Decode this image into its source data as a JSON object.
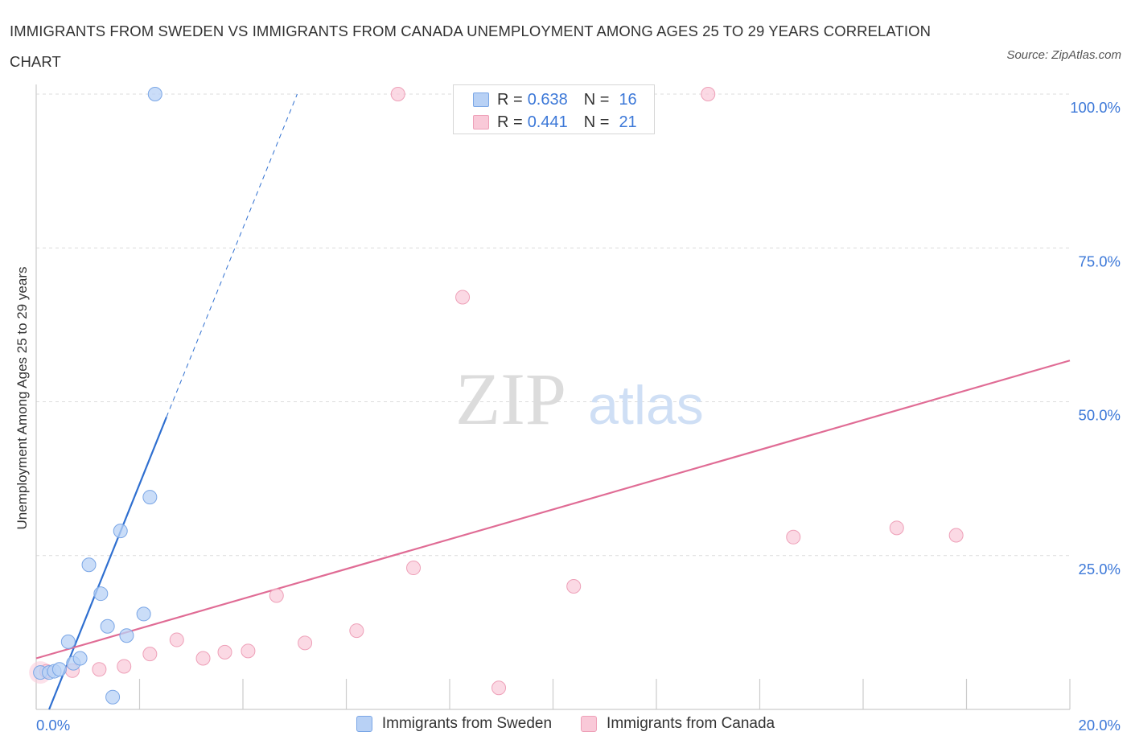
{
  "title": "IMMIGRANTS FROM SWEDEN VS IMMIGRANTS FROM CANADA UNEMPLOYMENT AMONG AGES 25 TO 29 YEARS CORRELATION CHART",
  "source": "Source: ZipAtlas.com",
  "watermark": {
    "zip": "ZIP",
    "atlas": "atlas"
  },
  "legend_top": [
    {
      "r_label": "R =",
      "r_value": "0.638",
      "n_label": "N =",
      "n_value": "16"
    },
    {
      "r_label": "R =",
      "r_value": "0.441",
      "n_label": "N =",
      "n_value": "21"
    }
  ],
  "legend_bottom": [
    "Immigrants from Sweden",
    "Immigrants from Canada"
  ],
  "colors": {
    "sweden_fill": "#b8d1f5",
    "sweden_stroke": "#7aa6e6",
    "sweden_line": "#2f6fd0",
    "canada_fill": "#f9c9d8",
    "canada_stroke": "#eea0b8",
    "canada_line": "#e06c95",
    "axis_text": "#3c78d8",
    "grid": "#dcdcdc"
  },
  "chart_data": {
    "type": "scatter",
    "xlabel": "",
    "ylabel": "Unemployment Among Ages 25 to 29 years",
    "xlim": [
      0,
      20
    ],
    "ylim": [
      0,
      100
    ],
    "x_tick_labels": [
      {
        "value": 0,
        "label": "0.0%"
      },
      {
        "value": 20,
        "label": "20.0%"
      }
    ],
    "y_tick_labels": [
      {
        "value": 25,
        "label": "25.0%"
      },
      {
        "value": 50,
        "label": "50.0%"
      },
      {
        "value": 75,
        "label": "75.0%"
      },
      {
        "value": 100,
        "label": "100.0%"
      }
    ],
    "series": [
      {
        "name": "Immigrants from Sweden",
        "points": [
          [
            0.08,
            6.0
          ],
          [
            0.25,
            6.0
          ],
          [
            0.35,
            6.2
          ],
          [
            0.45,
            6.5
          ],
          [
            0.62,
            11.0
          ],
          [
            0.72,
            7.5
          ],
          [
            0.85,
            8.3
          ],
          [
            1.02,
            23.5
          ],
          [
            1.25,
            18.8
          ],
          [
            1.48,
            2.0
          ],
          [
            1.38,
            13.5
          ],
          [
            1.63,
            29.0
          ],
          [
            1.75,
            12.0
          ],
          [
            2.08,
            15.5
          ],
          [
            2.2,
            34.5
          ],
          [
            2.3,
            100.0
          ]
        ],
        "trend": {
          "x_start": 0.25,
          "y_start": 0.0,
          "x_end": 2.52,
          "y_end": 47.5,
          "dashed_x_end": 5.05,
          "dashed_y_end": 100.0
        }
      },
      {
        "name": "Immigrants from Canada",
        "points": [
          [
            0.2,
            6.2
          ],
          [
            0.7,
            6.3
          ],
          [
            1.22,
            6.5
          ],
          [
            1.7,
            7.0
          ],
          [
            2.2,
            9.0
          ],
          [
            2.72,
            11.3
          ],
          [
            3.23,
            8.3
          ],
          [
            3.65,
            9.3
          ],
          [
            4.1,
            9.5
          ],
          [
            4.65,
            18.5
          ],
          [
            5.2,
            10.8
          ],
          [
            6.2,
            12.8
          ],
          [
            7.0,
            100.0
          ],
          [
            7.3,
            23.0
          ],
          [
            8.25,
            67.0
          ],
          [
            8.95,
            3.5
          ],
          [
            10.4,
            20.0
          ],
          [
            13.0,
            100.0
          ],
          [
            14.65,
            28.0
          ],
          [
            16.65,
            29.5
          ],
          [
            17.8,
            28.3
          ]
        ],
        "trend": {
          "x_start": 0.0,
          "y_start": 8.3,
          "x_end": 20.0,
          "y_end": 56.7
        }
      }
    ]
  }
}
